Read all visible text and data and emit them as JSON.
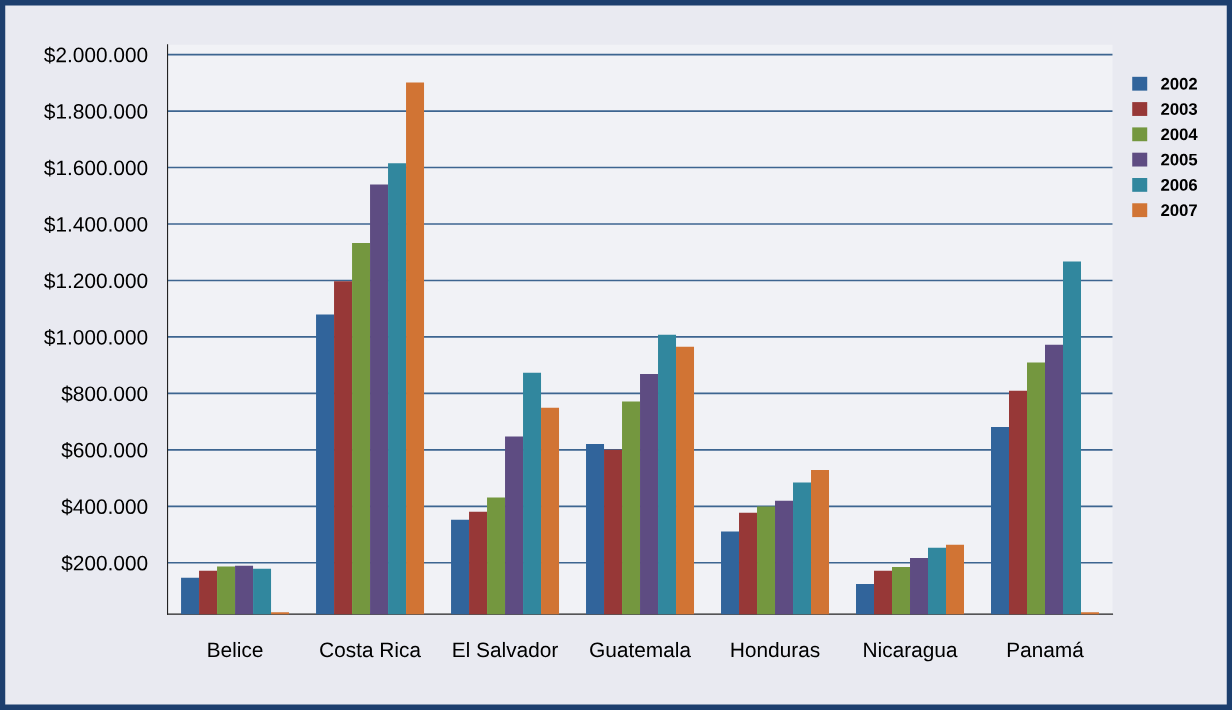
{
  "chart_data": {
    "type": "bar",
    "categories": [
      "Belice",
      "Costa Rica",
      "El Salvador",
      "Guatemala",
      "Honduras",
      "Nicaragua",
      "Panamá"
    ],
    "series": [
      {
        "name": "2002",
        "color": "#31649b",
        "values": [
          147000,
          1079000,
          352000,
          621000,
          311000,
          125000,
          681000
        ]
      },
      {
        "name": "2003",
        "color": "#973837",
        "values": [
          172000,
          1197000,
          381000,
          600000,
          377000,
          172000,
          809000
        ]
      },
      {
        "name": "2004",
        "color": "#74973f",
        "values": [
          187000,
          1333000,
          431000,
          771000,
          399000,
          185000,
          909000
        ]
      },
      {
        "name": "2005",
        "color": "#5e4c82",
        "values": [
          189000,
          1540000,
          647000,
          869000,
          420000,
          217000,
          972000
        ]
      },
      {
        "name": "2006",
        "color": "#31879e",
        "values": [
          179000,
          1615000,
          873000,
          1008000,
          484000,
          253000,
          1267000
        ]
      },
      {
        "name": "2007",
        "color": "#d17434",
        "values": [
          25000,
          1901000,
          749000,
          965000,
          529000,
          264000,
          25000
        ]
      }
    ],
    "ylim": [
      18000,
      2035000
    ],
    "yticks": [
      {
        "value": 200000,
        "label": "$200.000"
      },
      {
        "value": 400000,
        "label": "$400.000"
      },
      {
        "value": 600000,
        "label": "$600.000"
      },
      {
        "value": 800000,
        "label": "$800.000"
      },
      {
        "value": 1000000,
        "label": "$1.000.000"
      },
      {
        "value": 1200000,
        "label": "$1.200.000"
      },
      {
        "value": 1400000,
        "label": "$1.400.000"
      },
      {
        "value": 1600000,
        "label": "$1.600.000"
      },
      {
        "value": 1800000,
        "label": "$1.800.000"
      },
      {
        "value": 2000000,
        "label": "$2.000.000"
      }
    ],
    "grid": "y",
    "legend": "top right"
  }
}
